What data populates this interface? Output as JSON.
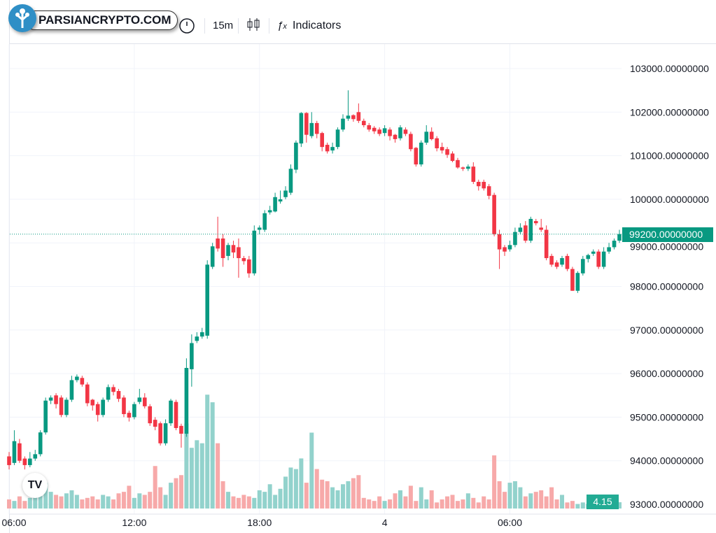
{
  "toolbar": {
    "interval": "15m",
    "indicators_label": "Indicators",
    "icons": [
      "clock-icon",
      "candlestick-icon",
      "fx-icon"
    ]
  },
  "watermark": {
    "text": "PARSIANCRYPTO.COM"
  },
  "colors": {
    "up": "#089981",
    "down": "#f23645",
    "up_volume": "#92d2cc",
    "down_volume": "#f7a9a9",
    "price_line": "#089981"
  },
  "chart_data": {
    "type": "candlestick",
    "interval": "15m",
    "y_ticks": [
      "103000.00000000",
      "102000.00000000",
      "101000.00000000",
      "100000.00000000",
      "99000.00000000",
      "98000.00000000",
      "97000.00000000",
      "96000.00000000",
      "95000.00000000",
      "94000.00000000",
      "93000.00000000"
    ],
    "y_tick_values": [
      103000,
      102000,
      101000,
      100000,
      99000,
      98000,
      97000,
      96000,
      95000,
      94000,
      93000
    ],
    "x_ticks": [
      {
        "label": "06:00",
        "index": 0
      },
      {
        "label": "12:00",
        "index": 24
      },
      {
        "label": "18:00",
        "index": 48
      },
      {
        "label": "4",
        "index": 72
      },
      {
        "label": "06:00",
        "index": 96
      }
    ],
    "ylim": [
      92900,
      103700
    ],
    "last_price": "99200.00000000",
    "last_price_value": 99200,
    "last_volume": "4.15",
    "ohlc": [
      [
        94100,
        94200,
        93800,
        93900
      ],
      [
        93950,
        94700,
        93900,
        94450
      ],
      [
        94400,
        94500,
        93950,
        94000
      ],
      [
        94050,
        94100,
        93800,
        93900
      ],
      [
        93900,
        94200,
        93850,
        94050
      ],
      [
        94050,
        94250,
        94000,
        94150
      ],
      [
        94150,
        94700,
        94100,
        94650
      ],
      [
        94650,
        95450,
        94600,
        95380
      ],
      [
        95380,
        95500,
        95300,
        95450
      ],
      [
        95500,
        95550,
        95200,
        95300
      ],
      [
        95450,
        95500,
        95000,
        95050
      ],
      [
        95050,
        95450,
        95000,
        95400
      ],
      [
        95400,
        95950,
        95350,
        95850
      ],
      [
        95850,
        95980,
        95800,
        95930
      ],
      [
        95900,
        95950,
        95700,
        95750
      ],
      [
        95750,
        95800,
        95250,
        95320
      ],
      [
        95400,
        95420,
        95150,
        95270
      ],
      [
        95300,
        95350,
        94900,
        95050
      ],
      [
        95050,
        95450,
        95000,
        95400
      ],
      [
        95400,
        95750,
        95350,
        95690
      ],
      [
        95690,
        95750,
        95500,
        95580
      ],
      [
        95600,
        95650,
        95350,
        95420
      ],
      [
        95450,
        95500,
        95000,
        95070
      ],
      [
        95100,
        95150,
        94900,
        94990
      ],
      [
        95000,
        95350,
        94950,
        95300
      ],
      [
        95350,
        95650,
        95300,
        95450
      ],
      [
        95450,
        95550,
        95200,
        95250
      ],
      [
        95250,
        95300,
        94800,
        94860
      ],
      [
        94940,
        95000,
        94700,
        94780
      ],
      [
        94860,
        94900,
        94350,
        94400
      ],
      [
        94400,
        94950,
        94350,
        94860
      ],
      [
        94860,
        95420,
        94800,
        95380
      ],
      [
        95350,
        95400,
        94700,
        94750
      ],
      [
        94800,
        94850,
        94300,
        94620
      ],
      [
        94620,
        96350,
        94550,
        96130
      ],
      [
        96100,
        96900,
        95700,
        96700
      ],
      [
        96750,
        96950,
        96700,
        96850
      ],
      [
        96850,
        97050,
        96800,
        96950
      ],
      [
        96870,
        98600,
        96800,
        98500
      ],
      [
        98450,
        99000,
        98400,
        98920
      ],
      [
        99100,
        99600,
        98800,
        98870
      ],
      [
        99100,
        99200,
        98450,
        98650
      ],
      [
        98700,
        99000,
        98600,
        98950
      ],
      [
        98950,
        99050,
        98650,
        98780
      ],
      [
        98900,
        99100,
        98200,
        98650
      ],
      [
        98650,
        98700,
        98500,
        98580
      ],
      [
        98620,
        98700,
        98200,
        98300
      ],
      [
        98300,
        99400,
        98250,
        99280
      ],
      [
        99300,
        99400,
        99200,
        99350
      ],
      [
        99300,
        99750,
        99250,
        99680
      ],
      [
        99700,
        99850,
        99650,
        99750
      ],
      [
        99720,
        100150,
        99700,
        100050
      ],
      [
        99950,
        100200,
        99900,
        100000
      ],
      [
        100050,
        100300,
        100000,
        100200
      ],
      [
        100150,
        100800,
        100100,
        100700
      ],
      [
        100680,
        101350,
        100600,
        101300
      ],
      [
        101280,
        102000,
        101200,
        101980
      ],
      [
        101980,
        102000,
        101300,
        101480
      ],
      [
        101450,
        102000,
        101400,
        101750
      ],
      [
        101750,
        101800,
        101400,
        101500
      ],
      [
        101520,
        101550,
        101100,
        101200
      ],
      [
        101250,
        101300,
        101050,
        101100
      ],
      [
        101120,
        101300,
        101050,
        101200
      ],
      [
        101200,
        101650,
        101150,
        101600
      ],
      [
        101600,
        101950,
        101550,
        101850
      ],
      [
        101850,
        102500,
        101800,
        101920
      ],
      [
        101930,
        101950,
        101780,
        101840
      ],
      [
        102000,
        102200,
        101750,
        101800
      ],
      [
        101800,
        101850,
        101650,
        101700
      ],
      [
        101700,
        101750,
        101550,
        101600
      ],
      [
        101640,
        101680,
        101500,
        101560
      ],
      [
        101600,
        101650,
        101450,
        101500
      ],
      [
        101520,
        101700,
        101450,
        101630
      ],
      [
        101600,
        101650,
        101350,
        101450
      ],
      [
        101480,
        101500,
        101300,
        101380
      ],
      [
        101400,
        101700,
        101350,
        101650
      ],
      [
        101600,
        101650,
        101450,
        101500
      ],
      [
        101500,
        101550,
        101100,
        101150
      ],
      [
        101180,
        101200,
        100750,
        100800
      ],
      [
        100800,
        101350,
        100750,
        101300
      ],
      [
        101300,
        101700,
        101250,
        101550
      ],
      [
        101550,
        101650,
        101350,
        101380
      ],
      [
        101400,
        101450,
        101100,
        101170
      ],
      [
        101200,
        101300,
        101050,
        101120
      ],
      [
        101150,
        101200,
        100950,
        101020
      ],
      [
        101050,
        101100,
        100850,
        100880
      ],
      [
        100900,
        100950,
        100700,
        100730
      ],
      [
        100730,
        100750,
        100650,
        100700
      ],
      [
        100700,
        100800,
        100650,
        100750
      ],
      [
        100750,
        100850,
        100350,
        100400
      ],
      [
        100400,
        100450,
        100200,
        100300
      ],
      [
        100400,
        100450,
        100200,
        100250
      ],
      [
        100300,
        100350,
        100000,
        100080
      ],
      [
        100100,
        100150,
        99150,
        99200
      ],
      [
        99200,
        99300,
        98400,
        98850
      ],
      [
        98900,
        98950,
        98700,
        98800
      ],
      [
        98850,
        99050,
        98800,
        98950
      ],
      [
        98950,
        99350,
        98900,
        99250
      ],
      [
        99250,
        99450,
        99200,
        99350
      ],
      [
        99400,
        99500,
        99000,
        99050
      ],
      [
        99050,
        99600,
        99000,
        99550
      ],
      [
        99500,
        99550,
        99400,
        99450
      ],
      [
        99350,
        99550,
        99250,
        99300
      ],
      [
        99300,
        99400,
        98600,
        98650
      ],
      [
        98700,
        98750,
        98450,
        98500
      ],
      [
        98550,
        98600,
        98400,
        98450
      ],
      [
        98500,
        98700,
        98450,
        98650
      ],
      [
        98700,
        98750,
        98350,
        98400
      ],
      [
        98400,
        98450,
        97900,
        97900
      ],
      [
        97900,
        98350,
        97850,
        98310
      ],
      [
        98300,
        98700,
        98250,
        98630
      ],
      [
        98630,
        98750,
        98550,
        98720
      ],
      [
        98750,
        98850,
        98700,
        98800
      ],
      [
        98800,
        98850,
        98400,
        98450
      ],
      [
        98450,
        98900,
        98400,
        98800
      ],
      [
        98800,
        99000,
        98750,
        98900
      ],
      [
        98900,
        99100,
        98850,
        99050
      ],
      [
        99050,
        99300,
        99000,
        99200
      ]
    ],
    "volume": [
      6,
      5,
      8,
      5,
      7,
      9,
      11,
      17,
      11,
      9,
      8,
      10,
      12,
      9,
      6,
      7,
      8,
      6,
      9,
      8,
      6,
      10,
      11,
      15,
      7,
      10,
      9,
      11,
      28,
      14,
      9,
      17,
      20,
      22,
      56,
      40,
      45,
      43,
      75,
      70,
      43,
      18,
      11,
      8,
      7,
      9,
      8,
      7,
      12,
      11,
      16,
      9,
      13,
      21,
      27,
      26,
      33,
      17,
      50,
      26,
      19,
      18,
      14,
      12,
      16,
      18,
      20,
      22,
      7,
      6,
      5,
      8,
      5,
      6,
      10,
      12,
      8,
      15,
      5,
      14,
      6,
      12,
      4,
      6,
      8,
      9,
      5,
      6,
      10,
      7,
      4,
      8,
      6,
      35,
      18,
      11,
      17,
      18,
      14,
      8,
      10,
      11,
      12,
      8,
      14,
      6,
      9,
      4,
      5,
      3,
      4,
      3,
      4,
      4,
      6,
      5,
      9,
      4.15
    ]
  }
}
